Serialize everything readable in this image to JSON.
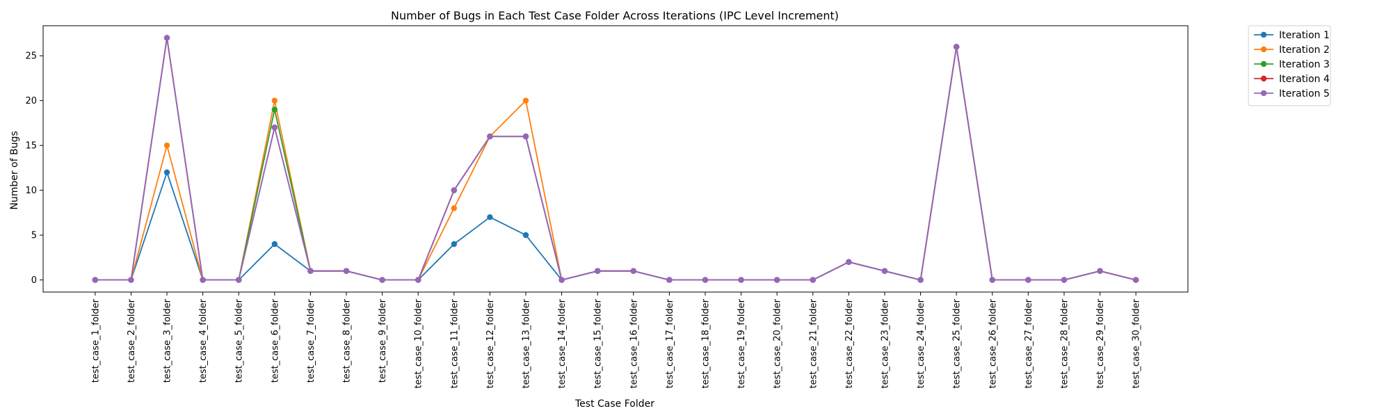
{
  "chart_data": {
    "type": "line",
    "title": "Number of Bugs in Each Test Case Folder Across Iterations (IPC Level Increment)",
    "xlabel": "Test Case Folder",
    "ylabel": "Number of Bugs",
    "ylim": [
      -1.35,
      28.35
    ],
    "yticks": [
      0,
      5,
      10,
      15,
      20,
      25
    ],
    "grid": false,
    "legend_position": "outside-top-right",
    "categories": [
      "test_case_1_folder",
      "test_case_2_folder",
      "test_case_3_folder",
      "test_case_4_folder",
      "test_case_5_folder",
      "test_case_6_folder",
      "test_case_7_folder",
      "test_case_8_folder",
      "test_case_9_folder",
      "test_case_10_folder",
      "test_case_11_folder",
      "test_case_12_folder",
      "test_case_13_folder",
      "test_case_14_folder",
      "test_case_15_folder",
      "test_case_16_folder",
      "test_case_17_folder",
      "test_case_18_folder",
      "test_case_19_folder",
      "test_case_20_folder",
      "test_case_21_folder",
      "test_case_22_folder",
      "test_case_23_folder",
      "test_case_24_folder",
      "test_case_25_folder",
      "test_case_26_folder",
      "test_case_27_folder",
      "test_case_28_folder",
      "test_case_29_folder",
      "test_case_30_folder"
    ],
    "series": [
      {
        "name": "Iteration 1",
        "color": "#1f77b4",
        "values": [
          0,
          0,
          12,
          0,
          0,
          4,
          1,
          1,
          0,
          0,
          4,
          7,
          5,
          0,
          1,
          1,
          0,
          0,
          0,
          0,
          0,
          2,
          1,
          0,
          26,
          0,
          0,
          0,
          1,
          0
        ]
      },
      {
        "name": "Iteration 2",
        "color": "#ff7f0e",
        "values": [
          0,
          0,
          15,
          0,
          0,
          20,
          1,
          1,
          0,
          0,
          8,
          16,
          20,
          0,
          1,
          1,
          0,
          0,
          0,
          0,
          0,
          2,
          1,
          0,
          26,
          0,
          0,
          0,
          1,
          0
        ]
      },
      {
        "name": "Iteration 3",
        "color": "#2ca02c",
        "values": [
          0,
          0,
          27,
          0,
          0,
          19,
          1,
          1,
          0,
          0,
          10,
          16,
          16,
          0,
          1,
          1,
          0,
          0,
          0,
          0,
          0,
          2,
          1,
          0,
          26,
          0,
          0,
          0,
          1,
          0
        ]
      },
      {
        "name": "Iteration 4",
        "color": "#d62728",
        "values": [
          0,
          0,
          27,
          0,
          0,
          17,
          1,
          1,
          0,
          0,
          10,
          16,
          16,
          0,
          1,
          1,
          0,
          0,
          0,
          0,
          0,
          2,
          1,
          0,
          26,
          0,
          0,
          0,
          1,
          0
        ]
      },
      {
        "name": "Iteration 5",
        "color": "#9467bd",
        "values": [
          0,
          0,
          27,
          0,
          0,
          17,
          1,
          1,
          0,
          0,
          10,
          16,
          16,
          0,
          1,
          1,
          0,
          0,
          0,
          0,
          0,
          2,
          1,
          0,
          26,
          0,
          0,
          0,
          1,
          0
        ]
      }
    ]
  }
}
